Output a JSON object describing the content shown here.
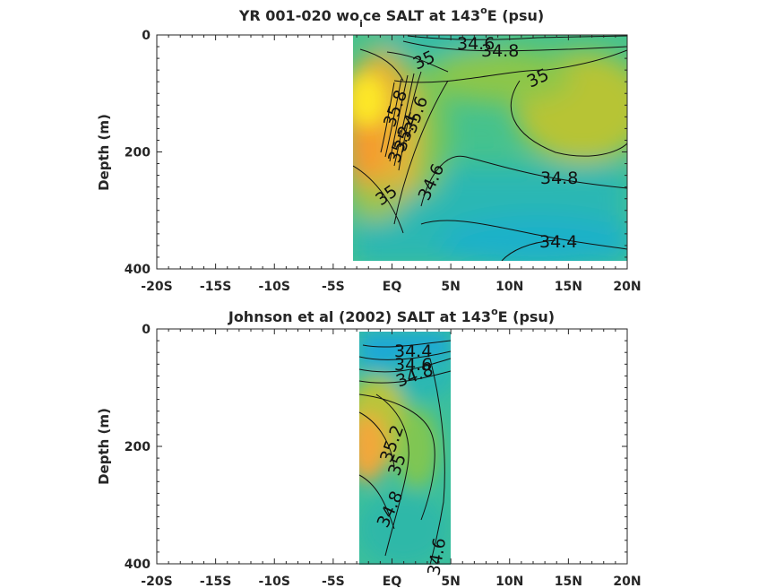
{
  "chart_data": [
    {
      "type": "contour",
      "title_main": "YR 001-020 wo",
      "title_sub": "i",
      "title_rest": "ce SALT at 143",
      "title_sup": "o",
      "title_end": "E (psu)",
      "ylabel": "Depth (m)",
      "xlim": [
        -20,
        20
      ],
      "ylim": [
        0,
        400
      ],
      "y_reversed": true,
      "x_ticks": [
        -20,
        -15,
        -10,
        -5,
        0,
        5,
        10,
        15,
        20
      ],
      "x_tick_labels": [
        "-20S",
        "-15S",
        "-10S",
        "-5S",
        "EQ",
        "5N",
        "10N",
        "15N",
        "20N"
      ],
      "y_ticks": [
        0,
        200,
        400
      ],
      "y_tick_labels": [
        "0",
        "200",
        "400"
      ],
      "data_extent": {
        "x": [
          -3,
          20
        ],
        "depth": [
          0,
          385
        ]
      },
      "contour_labels": [
        "34.6",
        "34.8",
        "35",
        "35",
        "35.8",
        "35.6",
        "35.4",
        "35.2",
        "35",
        "34.6",
        "34.8",
        "34.4"
      ],
      "colormap": "parula"
    },
    {
      "type": "contour",
      "title_main": "Johnson et al (2002) SALT at 143",
      "title_sup": "o",
      "title_end": "E (psu)",
      "ylabel": "Depth (m)",
      "xlim": [
        -20,
        20
      ],
      "ylim": [
        0,
        400
      ],
      "y_reversed": true,
      "x_ticks": [
        -20,
        -15,
        -10,
        -5,
        0,
        5,
        10,
        15,
        20
      ],
      "x_tick_labels": [
        "-20S",
        "-15S",
        "-10S",
        "-5S",
        "EQ",
        "5N",
        "10N",
        "15N",
        "20N"
      ],
      "y_ticks": [
        0,
        200,
        400
      ],
      "y_tick_labels": [
        "0",
        "200",
        "400"
      ],
      "data_extent": {
        "x": [
          -2.5,
          5.2
        ],
        "depth": [
          5,
          400
        ]
      },
      "contour_labels": [
        "34.4",
        "34.6",
        "34.8",
        "35.2",
        "35",
        "34.8",
        "34.6"
      ],
      "colormap": "parula"
    }
  ]
}
